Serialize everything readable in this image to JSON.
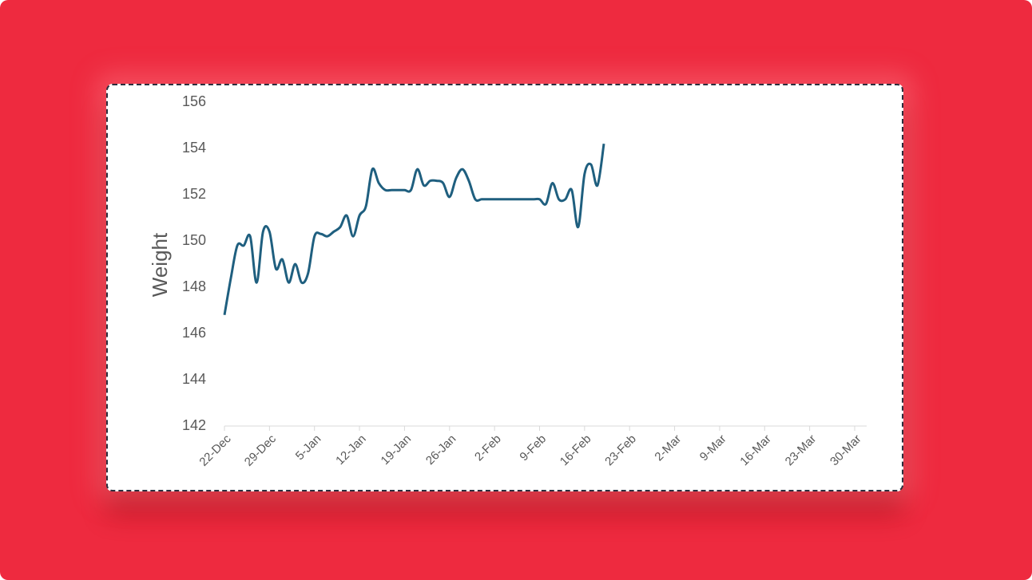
{
  "chart_data": {
    "type": "line",
    "y_label": "Weight",
    "x": [
      "22-Dec",
      "23-Dec",
      "24-Dec",
      "25-Dec",
      "26-Dec",
      "27-Dec",
      "28-Dec",
      "29-Dec",
      "30-Dec",
      "31-Dec",
      "1-Jan",
      "2-Jan",
      "3-Jan",
      "4-Jan",
      "5-Jan",
      "6-Jan",
      "7-Jan",
      "8-Jan",
      "9-Jan",
      "10-Jan",
      "11-Jan",
      "12-Jan",
      "13-Jan",
      "14-Jan",
      "15-Jan",
      "16-Jan",
      "17-Jan",
      "18-Jan",
      "19-Jan",
      "20-Jan",
      "21-Jan",
      "22-Jan",
      "23-Jan",
      "24-Jan",
      "25-Jan",
      "26-Jan",
      "27-Jan",
      "28-Jan",
      "29-Jan",
      "30-Jan",
      "31-Jan",
      "1-Feb",
      "2-Feb",
      "3-Feb",
      "4-Feb",
      "5-Feb",
      "6-Feb",
      "7-Feb",
      "8-Feb",
      "9-Feb",
      "10-Feb",
      "11-Feb",
      "12-Feb",
      "13-Feb",
      "14-Feb",
      "15-Feb",
      "16-Feb",
      "17-Feb",
      "18-Feb",
      "19-Feb"
    ],
    "values": [
      146.8,
      148.4,
      149.8,
      149.8,
      150.2,
      148.2,
      150.4,
      150.4,
      148.8,
      149.2,
      148.2,
      149.0,
      148.2,
      148.6,
      150.2,
      150.3,
      150.2,
      150.4,
      150.6,
      151.1,
      150.2,
      151.1,
      151.5,
      153.1,
      152.5,
      152.2,
      152.2,
      152.2,
      152.2,
      152.2,
      153.1,
      152.4,
      152.6,
      152.6,
      152.5,
      151.9,
      152.7,
      153.1,
      152.6,
      151.8,
      151.8,
      151.8,
      151.8,
      151.8,
      151.8,
      151.8,
      151.8,
      151.8,
      151.8,
      151.8,
      151.6,
      152.5,
      151.8,
      151.8,
      152.2,
      150.6,
      152.9,
      153.3,
      152.4,
      154.2
    ],
    "color": "#1f5f7f",
    "xlim": [
      "22-Dec",
      "30-Mar"
    ],
    "xticks": [
      "22-Dec",
      "29-Dec",
      "5-Jan",
      "12-Jan",
      "19-Jan",
      "26-Jan",
      "2-Feb",
      "9-Feb",
      "16-Feb",
      "23-Feb",
      "2-Mar",
      "9-Mar",
      "16-Mar",
      "23-Mar",
      "30-Mar"
    ],
    "ylim": [
      142,
      156
    ],
    "yticks": [
      142,
      144,
      146,
      148,
      150,
      152,
      154,
      156
    ]
  }
}
